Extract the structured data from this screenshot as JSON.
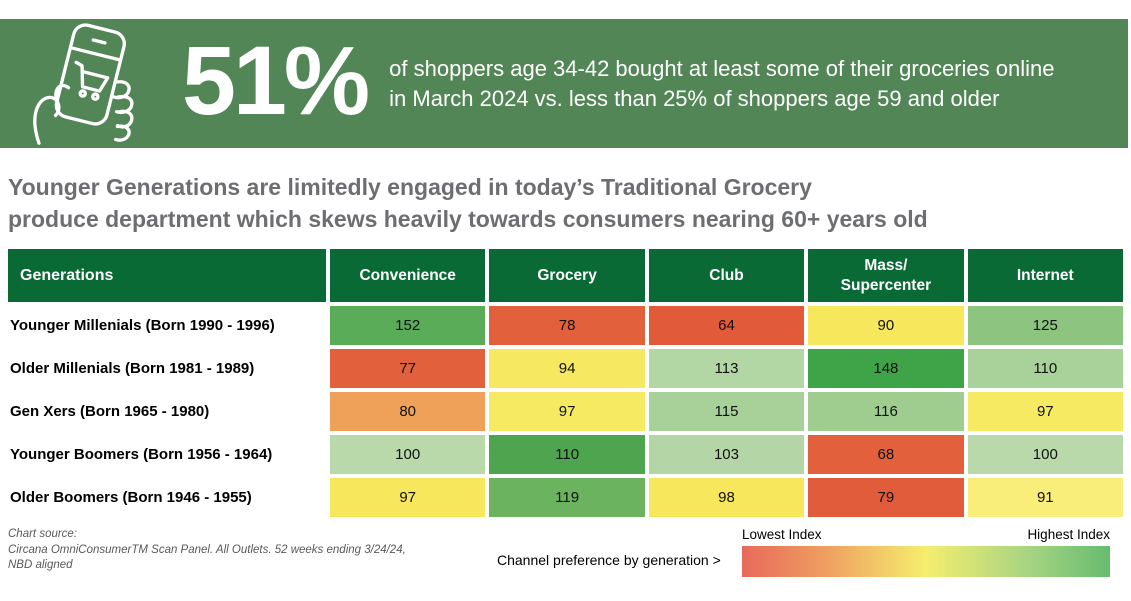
{
  "banner": {
    "stat": "51%",
    "description": "of shoppers age 34-42 bought at least some of their groceries online\nin March 2024 vs. less than 25% of shoppers age 59 and older",
    "bg_color": "#538656",
    "icon": "hand-holding-phone-with-shopping-cart"
  },
  "headline": "Younger Generations are limitedly engaged in today’s Traditional Grocery\nproduce department which skews heavily towards consumers nearing 60+ years old",
  "chart_data": {
    "type": "heatmap",
    "title": "Younger Generations are limitedly engaged in today’s Traditional Grocery produce department which skews heavily towards consumers nearing 60+ years old",
    "row_header": "Generations",
    "columns": [
      "Convenience",
      "Grocery",
      "Club",
      "Mass/\nSupercenter",
      "Internet"
    ],
    "rows": [
      {
        "label": "Younger Millenials (Born 1990 - 1996)",
        "values": [
          152,
          78,
          64,
          90,
          125
        ],
        "colors": [
          "#5BAC59",
          "#E2603C",
          "#E15A39",
          "#F6E75C",
          "#8DC480"
        ]
      },
      {
        "label": "Older Millenials (Born 1981 - 1989)",
        "values": [
          77,
          94,
          113,
          148,
          110
        ],
        "colors": [
          "#E2603C",
          "#F6E860",
          "#B2D6A4",
          "#3FA347",
          "#A9D29B"
        ]
      },
      {
        "label": "Gen Xers (Born 1965 - 1980)",
        "values": [
          80,
          97,
          115,
          116,
          97
        ],
        "colors": [
          "#F0A159",
          "#F7EA63",
          "#A7D199",
          "#9FCD90",
          "#F7EA63"
        ]
      },
      {
        "label": "Younger Boomers (Born 1956 - 1964)",
        "values": [
          100,
          110,
          103,
          68,
          100
        ],
        "colors": [
          "#B9D9AB",
          "#4FA54F",
          "#B4D6A6",
          "#E2603C",
          "#B9D9AB"
        ]
      },
      {
        "label": "Older Boomers (Born 1946 - 1955)",
        "values": [
          97,
          119,
          98,
          79,
          91
        ],
        "colors": [
          "#F6E75C",
          "#6CB35F",
          "#F6E75C",
          "#E05C3B",
          "#F8EE79"
        ]
      }
    ],
    "header_bg_color": "#0A6A36",
    "color_scale": {
      "low_color": "#E8695A",
      "mid_color": "#F5EE6E",
      "high_color": "#66BB6F"
    },
    "legend_position": "bottom-right"
  },
  "footer": {
    "source": "Chart source:\nCircana OmniConsumerTM Scan Panel. All Outlets. 52 weeks ending 3/24/24,\nNBD aligned",
    "legend_caption": "Channel preference by generation >",
    "legend_low_label": "Lowest Index",
    "legend_high_label": "Highest Index"
  }
}
